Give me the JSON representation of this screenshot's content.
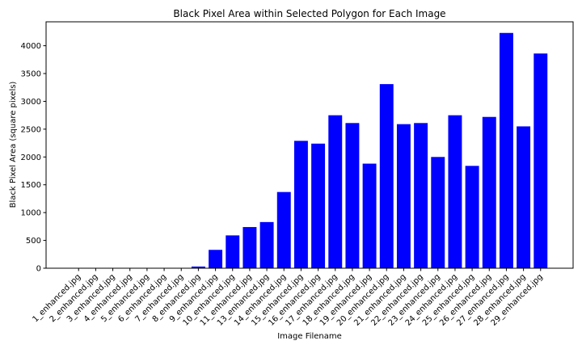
{
  "chart_data": {
    "type": "bar",
    "title": "Black Pixel Area within Selected Polygon for Each Image",
    "xlabel": "Image Filename",
    "ylabel": "Black Pixel Area (square pixels)",
    "ylim": [
      0,
      4430
    ],
    "yticks": [
      0,
      500,
      1000,
      1500,
      2000,
      2500,
      3000,
      3500,
      4000
    ],
    "bar_color": "#0000ff",
    "grid": false,
    "categories": [
      "1_enhanced.jpg",
      "2_enhanced.jpg",
      "3_enhanced.jpg",
      "4_enhanced.jpg",
      "5_enhanced.jpg",
      "6_enhanced.jpg",
      "7_enhanced.jpg",
      "8_enhanced.jpg",
      "9_enhanced.jpg",
      "10_enhanced.jpg",
      "11_enhanced.jpg",
      "13_enhanced.jpg",
      "14_enhanced.jpg",
      "15_enhanced.jpg",
      "16_enhanced.jpg",
      "17_enhanced.jpg",
      "18_enhanced.jpg",
      "19_enhanced.jpg",
      "20_enhanced.jpg",
      "21_enhanced.jpg",
      "22_enhanced.jpg",
      "23_enhanced.jpg",
      "24_enhanced.jpg",
      "25_enhanced.jpg",
      "26_enhanced.jpg",
      "27_enhanced.jpg",
      "28_enhanced.jpg",
      "29_enhanced.jpg"
    ],
    "values": [
      0,
      0,
      0,
      0,
      0,
      0,
      0,
      30,
      330,
      590,
      740,
      830,
      1370,
      2290,
      2240,
      2750,
      2610,
      1880,
      3310,
      2590,
      2610,
      2000,
      2750,
      1840,
      2720,
      4230,
      2550,
      3860
    ]
  }
}
